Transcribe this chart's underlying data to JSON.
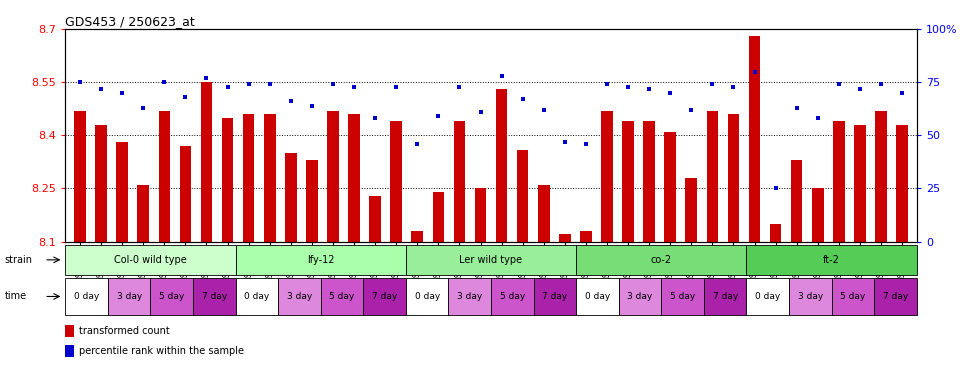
{
  "title": "GDS453 / 250623_at",
  "ylim_left": [
    8.1,
    8.7
  ],
  "ylim_right": [
    0,
    100
  ],
  "yticks_left": [
    8.1,
    8.25,
    8.4,
    8.55,
    8.7
  ],
  "yticks_right": [
    0,
    25,
    50,
    75,
    100
  ],
  "bar_color": "#CC0000",
  "dot_color": "#0000CC",
  "bar_width": 0.55,
  "samples": [
    "GSM8827",
    "GSM8828",
    "GSM8829",
    "GSM8830",
    "GSM8831",
    "GSM8832",
    "GSM8833",
    "GSM8834",
    "GSM8835",
    "GSM8836",
    "GSM8837",
    "GSM8838",
    "GSM8839",
    "GSM8840",
    "GSM8841",
    "GSM8842",
    "GSM8843",
    "GSM8844",
    "GSM8845",
    "GSM8846",
    "GSM8847",
    "GSM8848",
    "GSM8849",
    "GSM8850",
    "GSM8851",
    "GSM8852",
    "GSM8853",
    "GSM8854",
    "GSM8855",
    "GSM8856",
    "GSM8857",
    "GSM8858",
    "GSM8859",
    "GSM8860",
    "GSM8861",
    "GSM8862",
    "GSM8863",
    "GSM8864",
    "GSM8865",
    "GSM8866"
  ],
  "bar_values": [
    8.47,
    8.43,
    8.38,
    8.26,
    8.47,
    8.37,
    8.55,
    8.45,
    8.46,
    8.46,
    8.35,
    8.33,
    8.47,
    8.46,
    8.23,
    8.44,
    8.13,
    8.24,
    8.44,
    8.25,
    8.53,
    8.36,
    8.26,
    8.12,
    8.13,
    8.47,
    8.44,
    8.44,
    8.41,
    8.28,
    8.47,
    8.46,
    8.68,
    8.15,
    8.33,
    8.25,
    8.44,
    8.43,
    8.47,
    8.43
  ],
  "dot_values": [
    75,
    72,
    70,
    63,
    75,
    68,
    77,
    73,
    74,
    74,
    66,
    64,
    74,
    73,
    58,
    73,
    46,
    59,
    73,
    61,
    78,
    67,
    62,
    47,
    46,
    74,
    73,
    72,
    70,
    62,
    74,
    73,
    80,
    25,
    63,
    58,
    74,
    72,
    74,
    70
  ],
  "strain_labels": [
    "Col-0 wild type",
    "lfy-12",
    "Ler wild type",
    "co-2",
    "ft-2"
  ],
  "strain_starts": [
    0,
    8,
    16,
    24,
    32
  ],
  "strain_ends": [
    8,
    16,
    24,
    32,
    40
  ],
  "strain_colors": [
    "#ccffcc",
    "#aaffaa",
    "#99ee99",
    "#77dd77",
    "#55cc55"
  ],
  "time_labels": [
    "0 day",
    "3 day",
    "5 day",
    "7 day"
  ],
  "time_colors": [
    "#ffffff",
    "#dd88dd",
    "#cc55cc",
    "#aa22aa"
  ],
  "legend_bar_color": "#CC0000",
  "legend_dot_color": "#0000CC",
  "legend_bar_label": "transformed count",
  "legend_dot_label": "percentile rank within the sample"
}
